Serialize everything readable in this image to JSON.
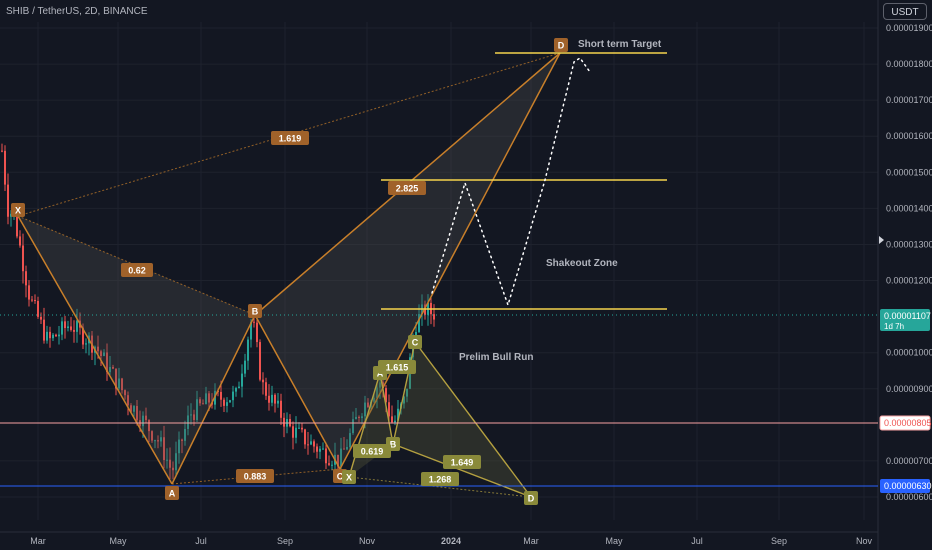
{
  "header": {
    "symbol_title": "SHIB / TetherUS, 2D, BINANCE",
    "currency_button": "USDT"
  },
  "colors": {
    "background": "#131722",
    "grid": "#1e222d",
    "text": "#b2b5be",
    "candle_up": "#26a69a",
    "candle_down": "#ef5350",
    "pattern_stroke": "#c87f2a",
    "pattern_fill": "#4a4a4a",
    "label_orange_bg": "#a0622a",
    "label_olive_bg": "#8a8a3a",
    "level_line": "#f5d44c",
    "last_price": "#26a69a",
    "red_line": "#f7a1a1",
    "blue_line": "#2962ff"
  },
  "chart_data": {
    "type": "candlestick",
    "title": "SHIB / TetherUS, 2D, BINANCE",
    "y_axis": {
      "range": [
        5.6e-06,
        2.04e-05
      ],
      "tick_labels": [
        "0.00000600",
        "0.00000700",
        "0.00000900",
        "0.00001000",
        "0.00001200",
        "0.00001300",
        "0.00001400",
        "0.00001500",
        "0.00001600",
        "0.00001700",
        "0.00001800",
        "0.00001900"
      ],
      "tick_values": [
        6e-06,
        7e-06,
        9e-06,
        1e-05,
        1.2e-05,
        1.3e-05,
        1.4e-05,
        1.5e-05,
        1.6e-05,
        1.7e-05,
        1.8e-05,
        1.9e-05
      ]
    },
    "x_axis": {
      "tick_labels": [
        "Mar",
        "May",
        "Jul",
        "Sep",
        "Nov",
        "2024",
        "Mar",
        "May",
        "Jul",
        "Sep",
        "Nov"
      ]
    },
    "price_badges": [
      {
        "label": "0.00001107",
        "sub": "1d 7h",
        "value": 1.107e-05,
        "style": "last"
      },
      {
        "label": "0.00000805",
        "value": 8.05e-06,
        "style": "red"
      },
      {
        "label": "0.00000630",
        "value": 6.3e-06,
        "style": "blue"
      }
    ],
    "horizontal_lines": [
      {
        "name": "short-term-target",
        "value": 1.83e-05
      },
      {
        "name": "level-2825",
        "value": 1.48e-05
      },
      {
        "name": "level-shakeout",
        "value": 1.12e-05
      }
    ],
    "pattern_labels": [
      "X",
      "A",
      "B",
      "C",
      "D",
      "0.62",
      "1.619",
      "2.825",
      "0.883"
    ],
    "small_pattern_labels": [
      "A",
      "B",
      "C",
      "X",
      "D",
      "1.615",
      "0.619",
      "1.649",
      "1.268"
    ],
    "annotations": [
      "Short term Target",
      "Shakeout Zone",
      "Prelim Bull Run"
    ]
  }
}
